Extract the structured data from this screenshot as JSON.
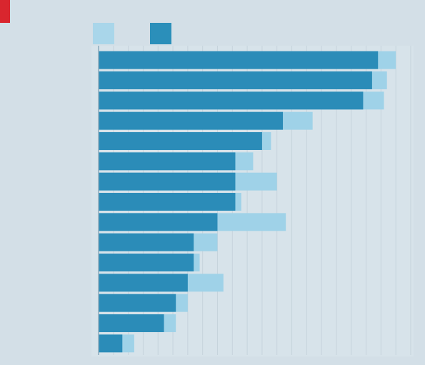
{
  "header": {
    "title": "",
    "subtitle": ""
  },
  "legend": [
    {
      "label": "",
      "color": "#a9d6ea"
    },
    {
      "label": "",
      "color": "#2b8fba"
    }
  ],
  "colors": {
    "background": "#d3dfe7",
    "plot_background": "#d7e3ea",
    "bar_light": "#9fd2e8",
    "bar_dark": "#2b8cb8",
    "accent": "#d9262e"
  },
  "chart_data": {
    "type": "bar",
    "orientation": "horizontal",
    "categories": [
      "",
      "",
      "",
      "",
      "",
      "",
      "",
      "",
      "",
      "",
      "",
      "",
      "",
      "",
      ""
    ],
    "series": [
      {
        "name": "",
        "values": [
          100,
          97,
          96,
          72,
          58,
          52,
          60,
          48,
          63,
          40,
          34,
          42,
          30,
          26,
          12
        ]
      },
      {
        "name": "",
        "values": [
          94,
          92,
          89,
          62,
          55,
          46,
          46,
          46,
          40,
          32,
          32,
          30,
          26,
          22,
          8
        ]
      }
    ],
    "xlim": [
      0,
      105
    ],
    "grid": true,
    "legend_position": "top-left",
    "title": "",
    "xlabel": "",
    "ylabel": ""
  }
}
